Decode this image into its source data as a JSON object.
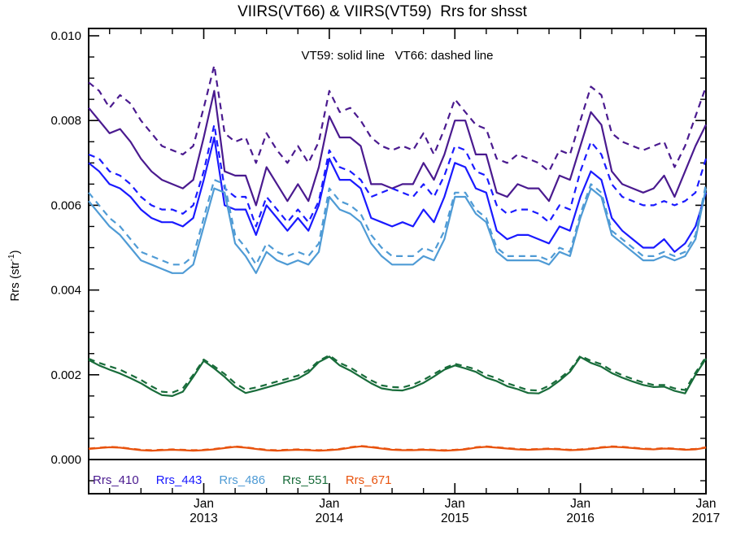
{
  "title": "VIIRS(VT66) & VIIRS(VT59)  Rrs for shsst",
  "annotation": "VT59: solid line   VT66: dashed line",
  "ylabel": {
    "prefix": "Rrs (str",
    "sup": "-1",
    "suffix": ")"
  },
  "legend": {
    "items": [
      {
        "label": "Rrs_410",
        "color": "#4a1a8f"
      },
      {
        "label": "Rrs_443",
        "color": "#1a1aff"
      },
      {
        "label": "Rrs_486",
        "color": "#4f9bd5"
      },
      {
        "label": "Rrs_551",
        "color": "#186c3a"
      },
      {
        "label": "Rrs_671",
        "color": "#e8530e"
      }
    ]
  },
  "chart_data": {
    "type": "line",
    "title": "VIIRS(VT66) & VIIRS(VT59)  Rrs for shsst",
    "ylabel": "Rrs (str-1)",
    "xlabel": "",
    "grid": false,
    "line_style_note": "VT59: solid line, VT66: dashed line",
    "ylim": [
      -0.00082,
      0.01016
    ],
    "y_major_ticks": [
      {
        "value": 0.0,
        "label": "0.000"
      },
      {
        "value": 0.002,
        "label": "0.002"
      },
      {
        "value": 0.004,
        "label": "0.004"
      },
      {
        "value": 0.006,
        "label": "0.006"
      },
      {
        "value": 0.008,
        "label": "0.008"
      },
      {
        "value": 0.01,
        "label": "0.010"
      }
    ],
    "y_minor_step": 0.0005,
    "x_minor_every_months": 3,
    "x_months": [
      "2012-02",
      "2012-03",
      "2012-04",
      "2012-05",
      "2012-06",
      "2012-07",
      "2012-08",
      "2012-09",
      "2012-10",
      "2012-11",
      "2012-12",
      "2013-01",
      "2013-02",
      "2013-03",
      "2013-04",
      "2013-05",
      "2013-06",
      "2013-07",
      "2013-08",
      "2013-09",
      "2013-10",
      "2013-11",
      "2013-12",
      "2014-01",
      "2014-02",
      "2014-03",
      "2014-04",
      "2014-05",
      "2014-06",
      "2014-07",
      "2014-08",
      "2014-09",
      "2014-10",
      "2014-11",
      "2014-12",
      "2015-01",
      "2015-02",
      "2015-03",
      "2015-04",
      "2015-05",
      "2015-06",
      "2015-07",
      "2015-08",
      "2015-09",
      "2015-10",
      "2015-11",
      "2015-12",
      "2016-01",
      "2016-02",
      "2016-03",
      "2016-04",
      "2016-05",
      "2016-06",
      "2016-07",
      "2016-08",
      "2016-09",
      "2016-10",
      "2016-11",
      "2016-12",
      "2017-01"
    ],
    "x_major_ticks": [
      {
        "index": 11,
        "line1": "Jan",
        "line2": "2013"
      },
      {
        "index": 23,
        "line1": "Jan",
        "line2": "2014"
      },
      {
        "index": 35,
        "line1": "Jan",
        "line2": "2015"
      },
      {
        "index": 47,
        "line1": "Jan",
        "line2": "2016"
      },
      {
        "index": 59,
        "line1": "Jan",
        "line2": "2017"
      }
    ],
    "series": [
      {
        "wavelength": "Rrs_410",
        "version": "VT59",
        "style": "solid",
        "color": "#4a1a8f",
        "values": [
          0.0083,
          0.008,
          0.0077,
          0.0078,
          0.0075,
          0.0071,
          0.0068,
          0.0066,
          0.0065,
          0.0064,
          0.0066,
          0.0076,
          0.0087,
          0.0068,
          0.0067,
          0.0067,
          0.006,
          0.0069,
          0.0065,
          0.0061,
          0.0065,
          0.0061,
          0.0069,
          0.0081,
          0.0076,
          0.0076,
          0.0074,
          0.0065,
          0.0065,
          0.0064,
          0.0065,
          0.0065,
          0.007,
          0.0066,
          0.0072,
          0.008,
          0.008,
          0.0072,
          0.0072,
          0.0063,
          0.0062,
          0.0065,
          0.0064,
          0.0064,
          0.0061,
          0.0067,
          0.0066,
          0.0074,
          0.0082,
          0.0079,
          0.0068,
          0.0065,
          0.0064,
          0.0063,
          0.0064,
          0.0067,
          0.0062,
          0.0068,
          0.0074,
          0.0079
        ]
      },
      {
        "wavelength": "Rrs_410",
        "version": "VT66",
        "style": "dashed",
        "color": "#4a1a8f",
        "values": [
          0.0089,
          0.0087,
          0.0083,
          0.0086,
          0.0084,
          0.008,
          0.0077,
          0.0074,
          0.0073,
          0.0072,
          0.0074,
          0.0083,
          0.0093,
          0.0077,
          0.0075,
          0.0076,
          0.007,
          0.0077,
          0.0073,
          0.007,
          0.0074,
          0.007,
          0.0075,
          0.0087,
          0.0082,
          0.0083,
          0.008,
          0.0076,
          0.0074,
          0.0073,
          0.0074,
          0.0073,
          0.0077,
          0.0072,
          0.0078,
          0.0085,
          0.0082,
          0.0079,
          0.0078,
          0.0071,
          0.007,
          0.0072,
          0.0071,
          0.007,
          0.0068,
          0.0073,
          0.0072,
          0.008,
          0.0088,
          0.0086,
          0.0077,
          0.0075,
          0.0074,
          0.0073,
          0.0074,
          0.0075,
          0.0069,
          0.0074,
          0.0081,
          0.0088
        ]
      },
      {
        "wavelength": "Rrs_443",
        "version": "VT59",
        "style": "solid",
        "color": "#1a1aff",
        "values": [
          0.007,
          0.0068,
          0.0065,
          0.0064,
          0.0062,
          0.0059,
          0.0057,
          0.0056,
          0.0056,
          0.0055,
          0.0057,
          0.0066,
          0.0076,
          0.006,
          0.0059,
          0.0059,
          0.0053,
          0.006,
          0.0057,
          0.0054,
          0.0057,
          0.0054,
          0.006,
          0.0071,
          0.0066,
          0.0066,
          0.0064,
          0.0057,
          0.0056,
          0.0055,
          0.0056,
          0.0055,
          0.0059,
          0.0056,
          0.0062,
          0.007,
          0.0069,
          0.0064,
          0.0063,
          0.0054,
          0.0052,
          0.0053,
          0.0053,
          0.0052,
          0.0051,
          0.0055,
          0.0054,
          0.0062,
          0.0068,
          0.0066,
          0.0057,
          0.0054,
          0.0052,
          0.005,
          0.005,
          0.0052,
          0.0049,
          0.0051,
          0.0055,
          0.0063
        ]
      },
      {
        "wavelength": "Rrs_443",
        "version": "VT66",
        "style": "dashed",
        "color": "#1a1aff",
        "values": [
          0.0072,
          0.0071,
          0.0068,
          0.0067,
          0.0065,
          0.0062,
          0.006,
          0.0059,
          0.0059,
          0.0058,
          0.006,
          0.0068,
          0.0079,
          0.0064,
          0.0062,
          0.0062,
          0.0055,
          0.0062,
          0.0059,
          0.0056,
          0.0059,
          0.0056,
          0.0061,
          0.0073,
          0.0069,
          0.0068,
          0.0066,
          0.0062,
          0.0063,
          0.0064,
          0.0063,
          0.0062,
          0.0065,
          0.0062,
          0.0067,
          0.0074,
          0.0073,
          0.0068,
          0.0067,
          0.006,
          0.0058,
          0.0059,
          0.0059,
          0.0058,
          0.0056,
          0.006,
          0.0059,
          0.0068,
          0.0075,
          0.0072,
          0.0065,
          0.0062,
          0.0061,
          0.006,
          0.006,
          0.0061,
          0.006,
          0.0061,
          0.0063,
          0.0071
        ]
      },
      {
        "wavelength": "Rrs_486",
        "version": "VT59",
        "style": "solid",
        "color": "#4f9bd5",
        "values": [
          0.0061,
          0.0058,
          0.0055,
          0.0053,
          0.005,
          0.0047,
          0.0046,
          0.0045,
          0.0044,
          0.0044,
          0.0046,
          0.0055,
          0.0064,
          0.0063,
          0.0051,
          0.0048,
          0.0044,
          0.0049,
          0.0047,
          0.0046,
          0.0047,
          0.0046,
          0.0049,
          0.0062,
          0.0059,
          0.0058,
          0.0056,
          0.0051,
          0.0048,
          0.0046,
          0.0046,
          0.0046,
          0.0048,
          0.0047,
          0.0052,
          0.0062,
          0.0062,
          0.0058,
          0.0056,
          0.0049,
          0.0047,
          0.0047,
          0.0047,
          0.0047,
          0.0046,
          0.0049,
          0.0048,
          0.0057,
          0.0064,
          0.0062,
          0.0053,
          0.0051,
          0.0049,
          0.0047,
          0.0047,
          0.0048,
          0.0047,
          0.0048,
          0.0052,
          0.0064
        ]
      },
      {
        "wavelength": "Rrs_486",
        "version": "VT66",
        "style": "dashed",
        "color": "#4f9bd5",
        "values": [
          0.0063,
          0.006,
          0.0057,
          0.0055,
          0.0052,
          0.0049,
          0.0048,
          0.0047,
          0.0046,
          0.0046,
          0.0048,
          0.0057,
          0.0066,
          0.0065,
          0.0053,
          0.005,
          0.0046,
          0.0051,
          0.0049,
          0.0048,
          0.0049,
          0.0048,
          0.0051,
          0.0064,
          0.0061,
          0.006,
          0.0058,
          0.0053,
          0.005,
          0.0048,
          0.0048,
          0.0048,
          0.005,
          0.0049,
          0.0054,
          0.0063,
          0.0063,
          0.0059,
          0.0057,
          0.005,
          0.0048,
          0.0048,
          0.0048,
          0.0048,
          0.0047,
          0.005,
          0.0049,
          0.0058,
          0.0065,
          0.0063,
          0.0054,
          0.0052,
          0.005,
          0.0048,
          0.0048,
          0.0049,
          0.0048,
          0.0049,
          0.0053,
          0.0065
        ]
      },
      {
        "wavelength": "Rrs_551",
        "version": "VT59",
        "style": "solid",
        "color": "#186c3a",
        "values": [
          0.00235,
          0.00222,
          0.00212,
          0.00203,
          0.00192,
          0.0018,
          0.00165,
          0.00152,
          0.0015,
          0.0016,
          0.00195,
          0.00233,
          0.00215,
          0.00195,
          0.00172,
          0.00157,
          0.00163,
          0.0017,
          0.00177,
          0.00184,
          0.00191,
          0.00205,
          0.0023,
          0.00243,
          0.00222,
          0.0021,
          0.00195,
          0.0018,
          0.00168,
          0.00164,
          0.00163,
          0.0017,
          0.00181,
          0.00196,
          0.00212,
          0.00222,
          0.00215,
          0.00207,
          0.00193,
          0.00185,
          0.00173,
          0.00166,
          0.00157,
          0.00156,
          0.00168,
          0.00186,
          0.00207,
          0.00242,
          0.00228,
          0.00219,
          0.00204,
          0.00193,
          0.00184,
          0.00176,
          0.00171,
          0.00172,
          0.00162,
          0.00156,
          0.002,
          0.00238
        ]
      },
      {
        "wavelength": "Rrs_551",
        "version": "VT66",
        "style": "dashed",
        "color": "#186c3a",
        "values": [
          0.00238,
          0.00228,
          0.0022,
          0.00212,
          0.002,
          0.00188,
          0.00173,
          0.0016,
          0.00158,
          0.00168,
          0.002,
          0.00236,
          0.0022,
          0.00202,
          0.0018,
          0.00165,
          0.0017,
          0.00177,
          0.00184,
          0.00191,
          0.00198,
          0.00211,
          0.00233,
          0.00246,
          0.00228,
          0.00217,
          0.00202,
          0.00187,
          0.00175,
          0.00171,
          0.0017,
          0.00177,
          0.00188,
          0.00202,
          0.00216,
          0.00226,
          0.0022,
          0.00213,
          0.002,
          0.00192,
          0.0018,
          0.00172,
          0.00164,
          0.00163,
          0.00174,
          0.00191,
          0.00211,
          0.00245,
          0.00233,
          0.00225,
          0.0021,
          0.00199,
          0.0019,
          0.00182,
          0.00176,
          0.00176,
          0.00168,
          0.00164,
          0.00205,
          0.00242
        ]
      },
      {
        "wavelength": "Rrs_671",
        "version": "VT59",
        "style": "solid",
        "color": "#e8530e",
        "values": [
          0.00025,
          0.00027,
          0.00029,
          0.00028,
          0.00025,
          0.00022,
          0.00021,
          0.00022,
          0.00023,
          0.00022,
          0.00021,
          0.00022,
          0.00024,
          0.00027,
          0.0003,
          0.00028,
          0.00025,
          0.00022,
          0.00021,
          0.00022,
          0.00023,
          0.00022,
          0.00021,
          0.00022,
          0.00024,
          0.00028,
          0.00031,
          0.00029,
          0.00026,
          0.00023,
          0.00022,
          0.00022,
          0.00023,
          0.00022,
          0.00021,
          0.00022,
          0.00024,
          0.00028,
          0.0003,
          0.00028,
          0.00026,
          0.00024,
          0.00023,
          0.00024,
          0.00025,
          0.00024,
          0.00022,
          0.00023,
          0.00025,
          0.00028,
          0.0003,
          0.00029,
          0.00027,
          0.00025,
          0.00024,
          0.00026,
          0.00025,
          0.00023,
          0.00024,
          0.00028
        ]
      },
      {
        "wavelength": "Rrs_671",
        "version": "VT66",
        "style": "dashed",
        "color": "#e8530e",
        "values": [
          0.00026,
          0.00028,
          0.0003,
          0.00029,
          0.00026,
          0.00023,
          0.00022,
          0.00023,
          0.00024,
          0.00023,
          0.00022,
          0.00023,
          0.00025,
          0.00028,
          0.00031,
          0.00029,
          0.00026,
          0.00023,
          0.00022,
          0.00023,
          0.00024,
          0.00023,
          0.00022,
          0.00023,
          0.00025,
          0.00029,
          0.00032,
          0.0003,
          0.00027,
          0.00024,
          0.00023,
          0.00023,
          0.00024,
          0.00023,
          0.00022,
          0.00023,
          0.00025,
          0.00029,
          0.00031,
          0.00029,
          0.00027,
          0.00025,
          0.00024,
          0.00025,
          0.00026,
          0.00025,
          0.00023,
          0.00024,
          0.00026,
          0.00029,
          0.00031,
          0.0003,
          0.00028,
          0.00026,
          0.00025,
          0.00027,
          0.00026,
          0.00024,
          0.00025,
          0.00029
        ]
      }
    ]
  }
}
